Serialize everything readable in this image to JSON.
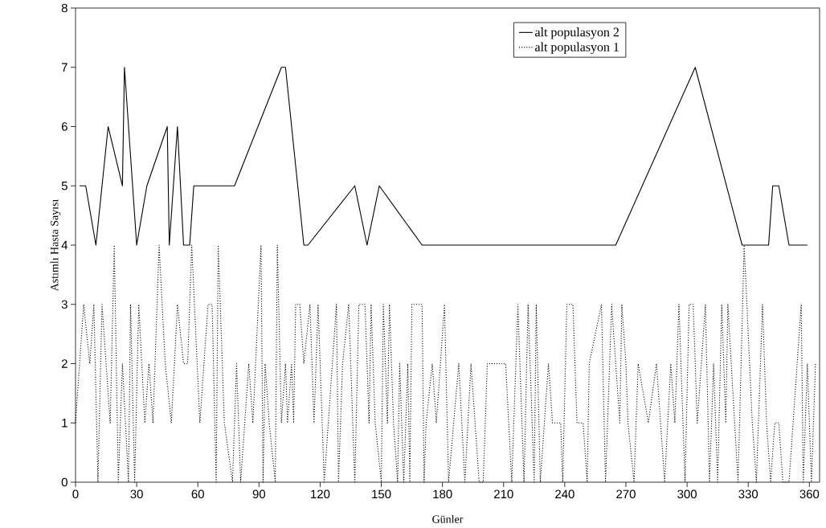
{
  "chart_data": {
    "type": "line",
    "xlabel": "Günler",
    "ylabel": "Astımlı Hasta Sayısı",
    "xlim": [
      0,
      365
    ],
    "ylim": [
      0,
      8
    ],
    "xticks": [
      0,
      30,
      60,
      90,
      120,
      150,
      180,
      210,
      240,
      270,
      300,
      330,
      360
    ],
    "yticks": [
      0,
      1,
      2,
      3,
      4,
      5,
      6,
      7,
      8
    ],
    "legend": "top right",
    "series": [
      {
        "name": "alt populasyon 2",
        "color": "#000000",
        "line_style": "solid",
        "x": [
          2,
          5,
          10,
          16,
          23,
          24,
          30,
          35,
          45,
          46,
          50,
          53,
          56,
          58,
          78,
          101,
          103,
          112,
          114,
          137,
          143,
          149,
          170,
          265,
          304,
          327,
          340,
          342,
          345,
          350,
          359
        ],
        "values": [
          5,
          5,
          4,
          6,
          5,
          7,
          4,
          5,
          6,
          4,
          6,
          4,
          4,
          5,
          5,
          7,
          7,
          4,
          4,
          5,
          4,
          5,
          4,
          4,
          7,
          4,
          4,
          5,
          5,
          4,
          4
        ]
      },
      {
        "name": "alt populasyon 1",
        "color": "#000000",
        "line_style": "dotted",
        "x": [
          0,
          4,
          7,
          9,
          11,
          13,
          17,
          19,
          21,
          23,
          26,
          27,
          29,
          31,
          34,
          36,
          38,
          41,
          44,
          47,
          50,
          53,
          55,
          57,
          61,
          65,
          67,
          69,
          70,
          73,
          77,
          79,
          81,
          85,
          87,
          91,
          92,
          93,
          95,
          98,
          99,
          101,
          103,
          104,
          106,
          107,
          108,
          110,
          112,
          115,
          117,
          119,
          121,
          122,
          124,
          126,
          128,
          129,
          131,
          134,
          136,
          137,
          139,
          142,
          144,
          145,
          147,
          150,
          151,
          153,
          154,
          156,
          158,
          159,
          161,
          163,
          164,
          165,
          170,
          171,
          172,
          175,
          177,
          181,
          183,
          188,
          191,
          194,
          198,
          200,
          202,
          207,
          211,
          214,
          217,
          220,
          222,
          225,
          226,
          228,
          232,
          234,
          238,
          239,
          241,
          244,
          246,
          249,
          251,
          252,
          258,
          260,
          263,
          267,
          268,
          270,
          271,
          274,
          276,
          281,
          285,
          287,
          289,
          292,
          294,
          296,
          299,
          301,
          303,
          305,
          309,
          311,
          313,
          315,
          317,
          319,
          320,
          325,
          328,
          332,
          334,
          337,
          339,
          341,
          343,
          345,
          347,
          350,
          352,
          356,
          357,
          359,
          361,
          363
        ],
        "values": [
          1,
          3,
          2,
          3,
          0,
          3,
          1,
          4,
          0,
          2,
          0,
          3,
          0,
          3,
          1,
          2,
          1,
          4,
          2,
          1,
          3,
          2,
          2,
          4,
          1,
          3,
          3,
          0,
          4,
          1,
          0,
          2,
          0,
          2,
          1,
          4,
          0,
          2,
          1,
          0,
          4,
          1,
          2,
          1,
          2,
          1,
          3,
          3,
          2,
          3,
          1,
          3,
          1,
          0,
          1,
          2,
          3,
          0,
          2,
          3,
          1,
          0,
          3,
          3,
          1,
          3,
          1,
          0,
          3,
          1,
          3,
          1,
          0,
          2,
          0,
          2,
          0,
          3,
          3,
          0,
          1,
          2,
          1,
          3,
          0,
          2,
          0,
          2,
          0,
          0,
          2,
          2,
          2,
          0,
          3,
          0,
          3,
          0,
          3,
          0,
          2,
          1,
          1,
          0,
          3,
          3,
          1,
          1,
          0,
          2,
          3,
          0,
          3,
          1,
          3,
          2,
          1,
          0,
          2,
          1,
          2,
          1,
          0,
          2,
          1,
          3,
          0,
          3,
          3,
          1,
          3,
          0,
          2,
          0,
          3,
          1,
          3,
          0,
          4,
          1,
          0,
          3,
          1,
          0,
          1,
          1,
          0,
          0,
          1,
          3,
          0,
          2,
          0,
          2
        ]
      }
    ]
  }
}
